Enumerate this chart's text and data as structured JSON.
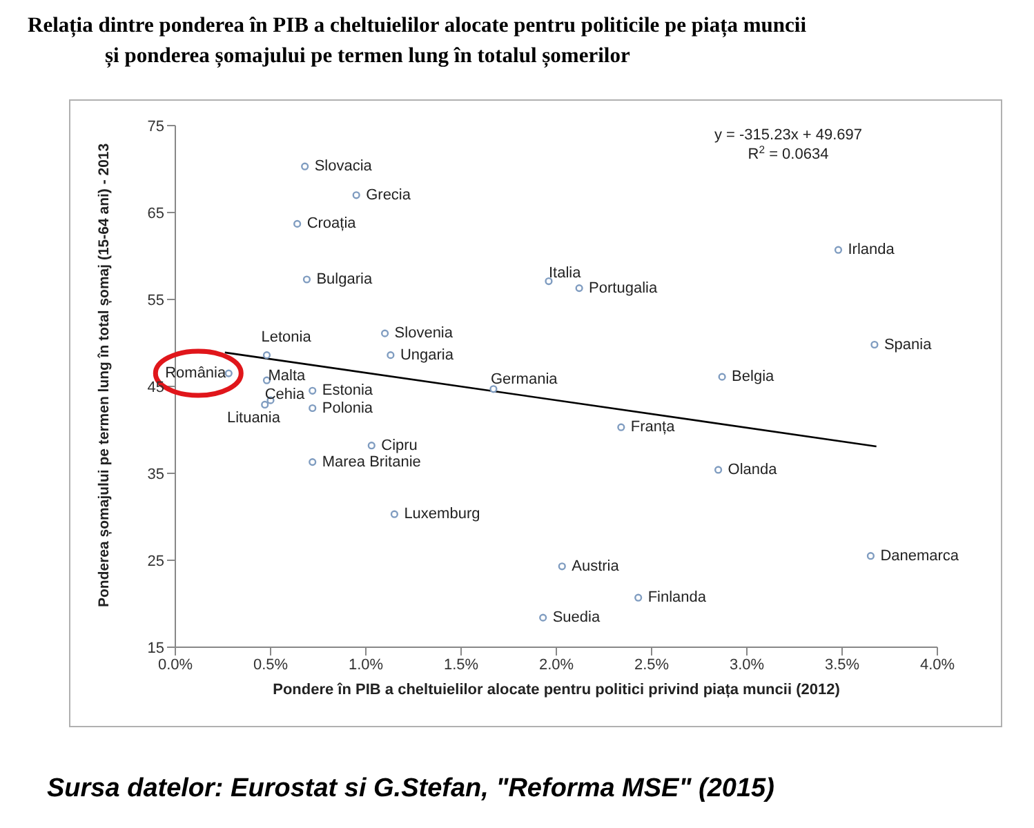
{
  "chart_data": {
    "type": "scatter",
    "title": "Relația dintre ponderea în PIB a cheltuielilor alocate pentru politicile pe piața muncii\nși ponderea șomajului pe termen lung în totalul șomerilor",
    "xlabel": "Pondere în PIB a cheltuielilor alocate pentru politici privind piața muncii (2012)",
    "ylabel": "Ponderea șomajului pe termen lung în total șomaj (15-64 ani) - 2013",
    "xlim": [
      0,
      4
    ],
    "xticks": [
      {
        "value": 0,
        "label": "0.0%"
      },
      {
        "value": 0.5,
        "label": "0.5%"
      },
      {
        "value": 1,
        "label": "1.0%"
      },
      {
        "value": 1.5,
        "label": "1.5%"
      },
      {
        "value": 2,
        "label": "2.0%"
      },
      {
        "value": 2.5,
        "label": "2.5%"
      },
      {
        "value": 3,
        "label": "3.0%"
      },
      {
        "value": 3.5,
        "label": "3.5%"
      },
      {
        "value": 4,
        "label": "4.0%"
      }
    ],
    "ylim": [
      15,
      75
    ],
    "yticks": [
      15,
      25,
      35,
      45,
      55,
      65,
      75
    ],
    "grid": false,
    "legend": false,
    "series": [
      {
        "marker": "circle",
        "color": "#7f9cc0",
        "x": [
          0.28,
          0.68,
          0.95,
          0.64,
          0.69,
          1.96,
          2.12,
          3.48,
          0.48,
          1.1,
          1.13,
          0.48,
          1.67,
          0.72,
          0.47,
          0.5,
          0.72,
          2.87,
          3.67,
          2.34,
          1.03,
          0.72,
          2.85,
          1.15,
          2.03,
          3.65,
          2.43,
          1.93
        ],
        "values": [
          46.5,
          70.3,
          67.0,
          63.7,
          57.3,
          57.1,
          56.3,
          60.7,
          48.6,
          51.1,
          48.6,
          45.7,
          44.7,
          44.5,
          42.9,
          43.4,
          42.5,
          46.1,
          49.8,
          40.3,
          38.2,
          36.3,
          35.4,
          30.3,
          24.3,
          25.5,
          20.7,
          18.4
        ]
      },
      {
        "type": "line",
        "color": "#000000",
        "x": [
          0.26,
          3.68
        ],
        "values": [
          48.9,
          38.1
        ]
      }
    ],
    "annotations": [
      {
        "text": "România",
        "x": 0.28,
        "y": 46.5
      },
      {
        "text": "Slovacia",
        "x": 0.68,
        "y": 70.3
      },
      {
        "text": "Grecia",
        "x": 0.95,
        "y": 67.0
      },
      {
        "text": "Croația",
        "x": 0.64,
        "y": 63.7
      },
      {
        "text": "Bulgaria",
        "x": 0.69,
        "y": 57.3
      },
      {
        "text": "Italia",
        "x": 1.96,
        "y": 57.1
      },
      {
        "text": "Portugalia",
        "x": 2.12,
        "y": 56.3
      },
      {
        "text": "Irlanda",
        "x": 3.48,
        "y": 60.7
      },
      {
        "text": "Letonia",
        "x": 0.48,
        "y": 48.6
      },
      {
        "text": "Slovenia",
        "x": 1.1,
        "y": 51.1
      },
      {
        "text": "Ungaria",
        "x": 1.13,
        "y": 48.6
      },
      {
        "text": "Malta",
        "x": 0.48,
        "y": 45.7
      },
      {
        "text": "Germania",
        "x": 1.67,
        "y": 44.7
      },
      {
        "text": "Estonia",
        "x": 0.72,
        "y": 44.5
      },
      {
        "text": "Cehia",
        "x": 0.47,
        "y": 42.9
      },
      {
        "text": "Lituania",
        "x": 0.5,
        "y": 43.4
      },
      {
        "text": "Polonia",
        "x": 0.72,
        "y": 42.5
      },
      {
        "text": "Belgia",
        "x": 2.87,
        "y": 46.1
      },
      {
        "text": "Spania",
        "x": 3.67,
        "y": 49.8
      },
      {
        "text": "Franța",
        "x": 2.34,
        "y": 40.3
      },
      {
        "text": "Cipru",
        "x": 1.03,
        "y": 38.2
      },
      {
        "text": "Marea Britanie",
        "x": 0.72,
        "y": 36.3
      },
      {
        "text": "Olanda",
        "x": 2.85,
        "y": 35.4
      },
      {
        "text": "Luxemburg",
        "x": 1.15,
        "y": 30.3
      },
      {
        "text": "Austria",
        "x": 2.03,
        "y": 24.3
      },
      {
        "text": "Danemarca",
        "x": 3.65,
        "y": 25.5
      },
      {
        "text": "Finlanda",
        "x": 2.43,
        "y": 20.7
      },
      {
        "text": "Suedia",
        "x": 1.93,
        "y": 18.4
      },
      "y = -315.23x + 49.697",
      "R$^{2}$ = 0.0634",
      "Sursa datelor: Eurostat si G.Stefan, \"Reforma MSE\" (2015)"
    ]
  }
}
